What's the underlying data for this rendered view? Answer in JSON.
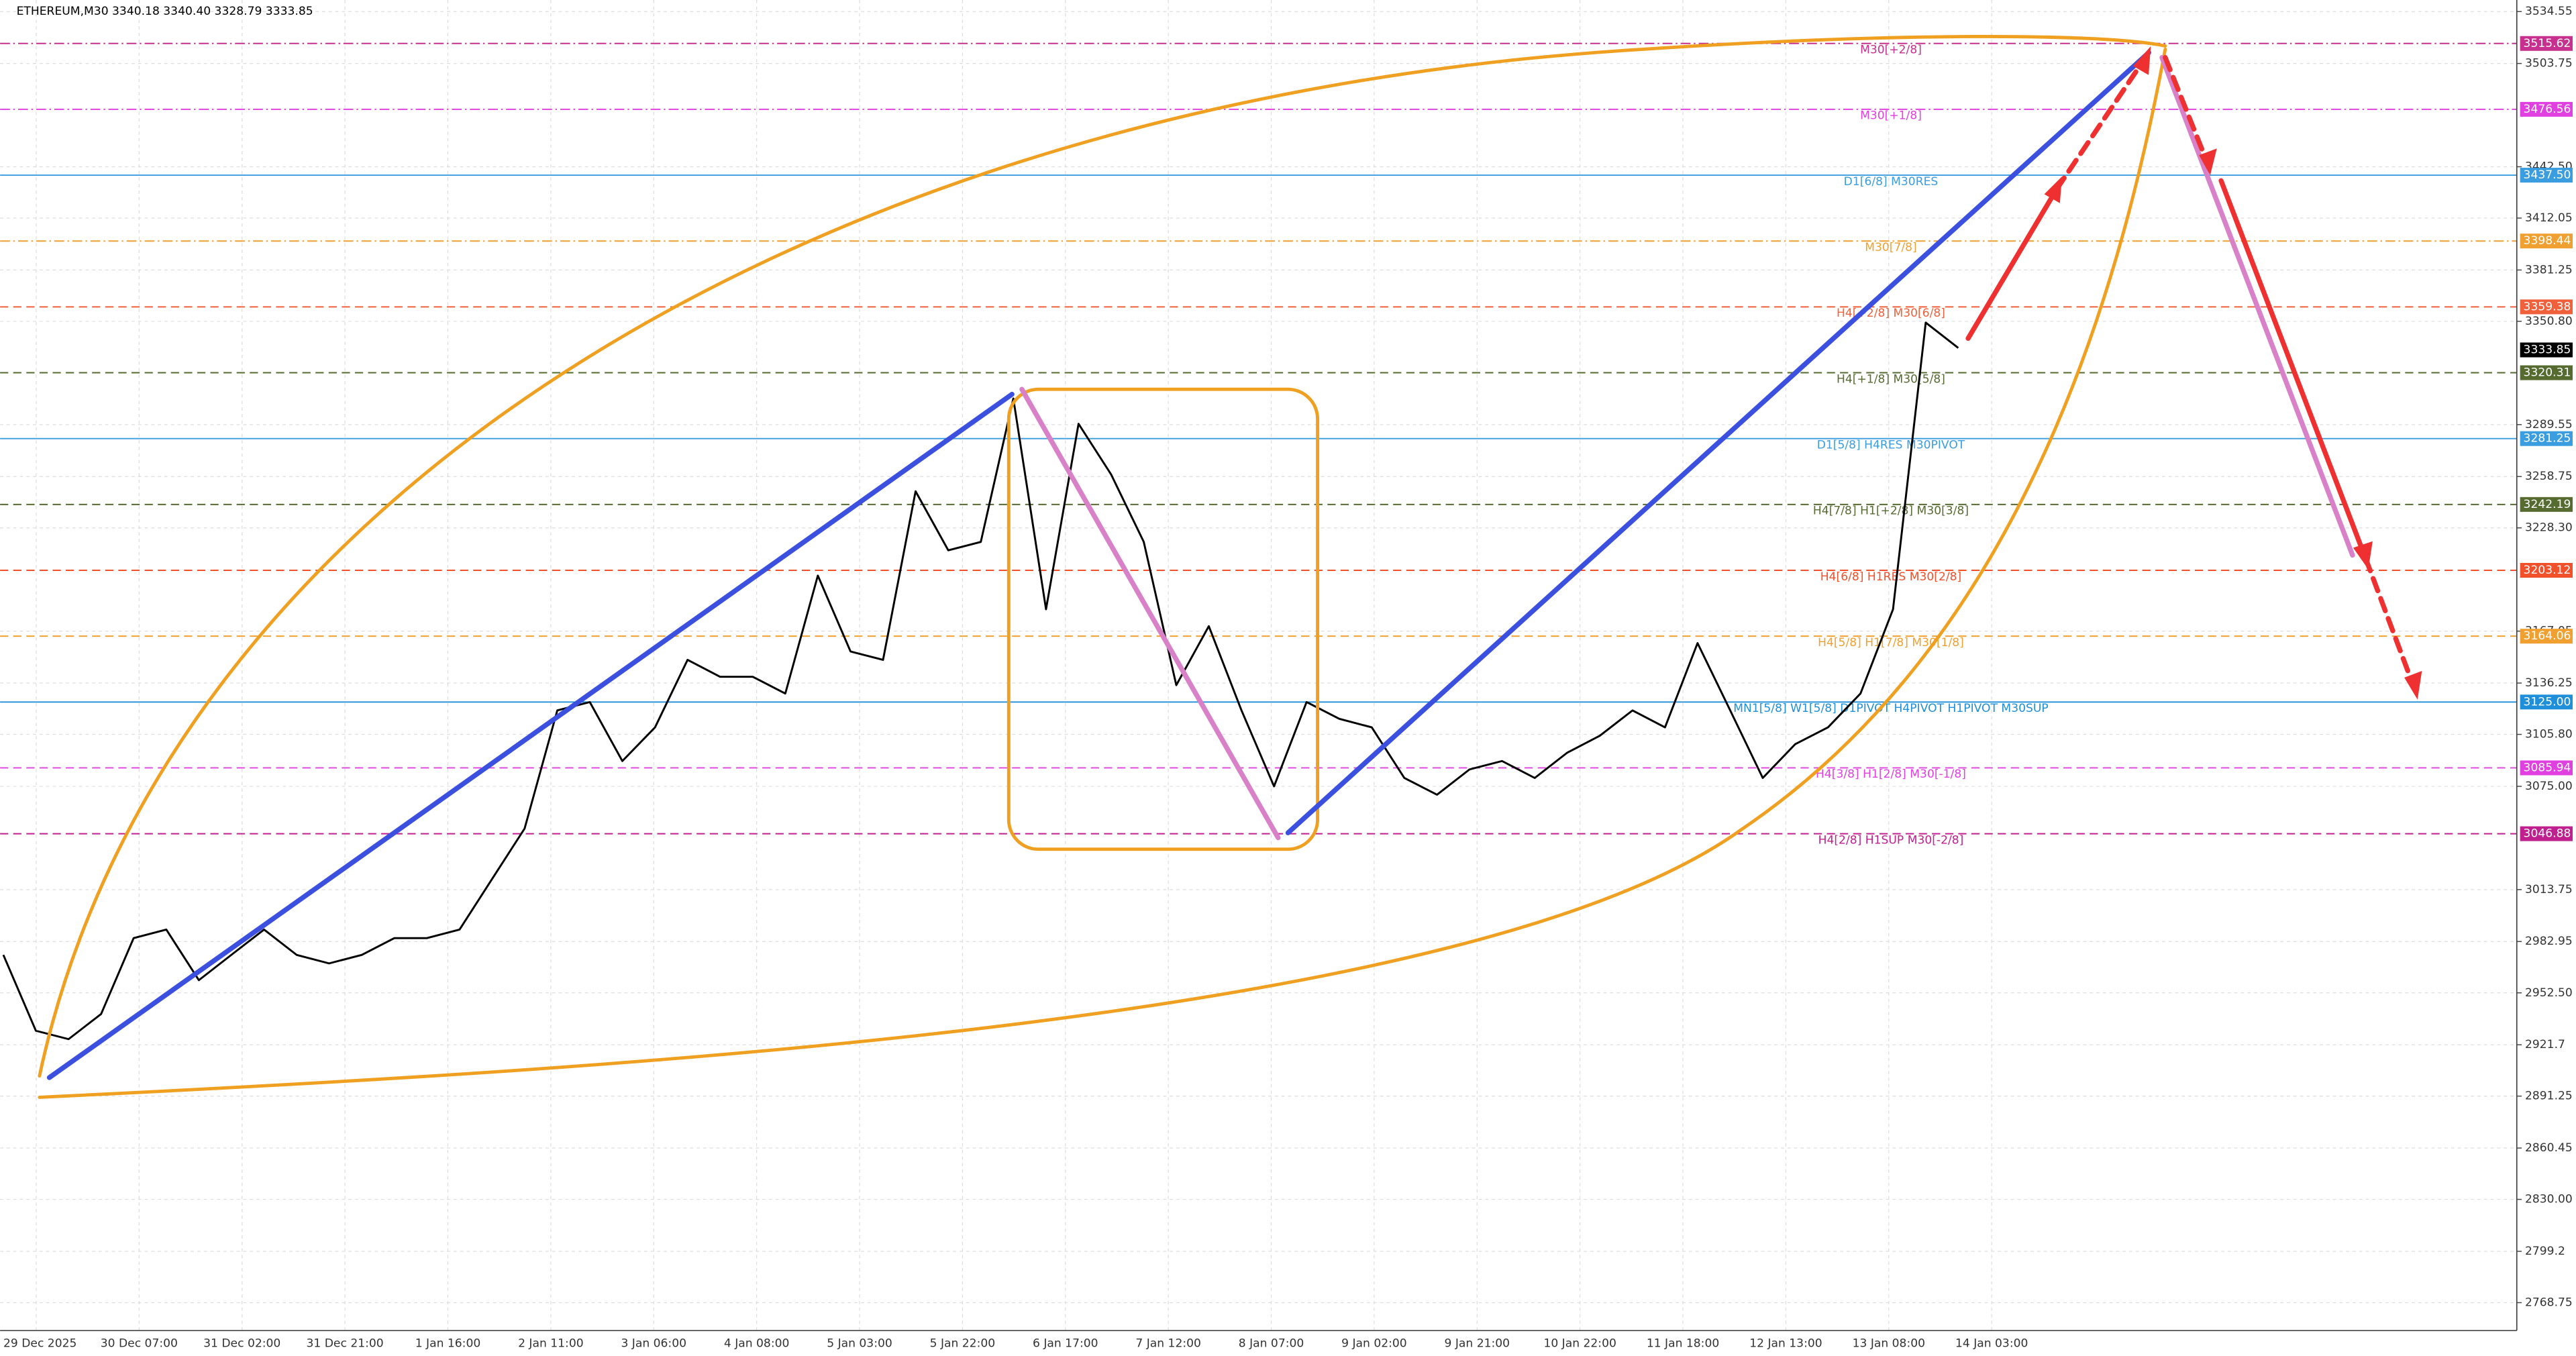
{
  "chart_data": {
    "type": "candlestick-line",
    "header": "ETHEREUM,M30  3340.18 3340.40 3328.79 3333.85",
    "ylim": [
      2752.2,
      3541.4
    ],
    "yticks": [
      3534.55,
      3503.75,
      {
        "value": 3442.5,
        "label": "3442.50"
      },
      3412.05,
      3381.25,
      {
        "value": 3350.8,
        "label": "3350.80"
      },
      3289.55,
      3258.75,
      {
        "value": 3228.3,
        "label": "3228.30"
      },
      3167.05,
      3136.25,
      {
        "value": 3105.8,
        "label": "3105.80"
      },
      {
        "value": 3075,
        "label": "3075.00"
      },
      3013.75,
      2982.95,
      {
        "value": 2952.5,
        "label": "2952.50"
      },
      2921.7,
      2891.25,
      2860.45,
      {
        "value": 2830,
        "label": "2830.00"
      },
      2799.2,
      2768.75
    ],
    "xlabels": [
      "29 Dec 2025",
      "30 Dec 07:00",
      "31 Dec 02:00",
      "31 Dec 21:00",
      "1 Jan 16:00",
      "2 Jan 11:00",
      "3 Jan 06:00",
      "4 Jan 08:00",
      "5 Jan 03:00",
      "5 Jan 22:00",
      "6 Jan 17:00",
      "7 Jan 12:00",
      "8 Jan 07:00",
      "9 Jan 02:00",
      "9 Jan 21:00",
      "10 Jan 22:00",
      "11 Jan 18:00",
      "12 Jan 13:00",
      "13 Jan 08:00",
      "14 Jan 03:00"
    ],
    "price": {
      "color": "#000000",
      "values": [
        2975,
        2930,
        2925,
        2940,
        2985,
        2990,
        2960,
        2975,
        2990,
        2975,
        2970,
        2975,
        2985,
        2985,
        2990,
        3020,
        3050,
        3120,
        3125,
        3090,
        3110,
        3150,
        3140,
        3140,
        3130,
        3200,
        3155,
        3150,
        3250,
        3215,
        3220,
        3305,
        3180,
        3290,
        3260,
        3220,
        3135,
        3170,
        3120,
        3075,
        3125,
        3115,
        3110,
        3080,
        3070,
        3085,
        3090,
        3080,
        3095,
        3105,
        3120,
        3110,
        3160,
        3120,
        3080,
        3100,
        3110,
        3130,
        3180,
        3350,
        3335
      ]
    },
    "current": {
      "value": 3333.85,
      "value_label": "3333.85",
      "color": "#000000"
    },
    "levels": [
      {
        "name": "M30[+2/8]",
        "value": 3515.62,
        "value_label": "3515.62",
        "color": "#c8308f",
        "dash": "6 2 1 2"
      },
      {
        "name": "M30[+1/8]",
        "value": 3476.56,
        "value_label": "3476.56",
        "color": "#e040e0",
        "dash": "6 2 1 2"
      },
      {
        "name": "D1[6/8] M30RES",
        "value": 3437.5,
        "value_label": "3437.50",
        "color": "#3a9de0",
        "dash": ""
      },
      {
        "name": "M30[7/8]",
        "value": 3398.44,
        "value_label": "3398.44",
        "color": "#f0a030",
        "dash": "6 2 1 2"
      },
      {
        "name": "H4[+2/8] M30[6/8]",
        "value": 3359.38,
        "value_label": "3359.38",
        "color": "#f0603a",
        "dash": "5 3"
      },
      {
        "name": "H4[+1/8] M30[5/8]",
        "value": 3320.31,
        "value_label": "3320.31",
        "color": "#556b2f",
        "dash": "5 3"
      },
      {
        "name": "D1[5/8] H4RES M30PIVOT",
        "value": 3281.25,
        "value_label": "3281.25",
        "color": "#3a9de0",
        "dash": ""
      },
      {
        "name": "H4[7/8] H1[+2/8] M30[3/8]",
        "value": 3242.19,
        "value_label": "3242.19",
        "color": "#556b2f",
        "dash": "5 3"
      },
      {
        "name": "H4[6/8] H1RES M30[2/8]",
        "value": 3203.12,
        "value_label": "3203.12",
        "color": "#f0502a",
        "dash": "5 3"
      },
      {
        "name": "H4[5/8] H1[7/8] M30[1/8]",
        "value": 3164.06,
        "value_label": "3164.06",
        "color": "#f0a030",
        "dash": "5 3"
      },
      {
        "name": "MN1[5/8] W1[5/8] D1PIVOT H4PIVOT H1PIVOT M30SUP",
        "value": 3125,
        "value_label": "3125.00",
        "color": "#1e8fd8",
        "dash": ""
      },
      {
        "name": "H4[3/8] H1[2/8] M30[-1/8]",
        "value": 3085.94,
        "value_label": "3085.94",
        "color": "#e040e0",
        "dash": "5 3"
      },
      {
        "name": "H4[2/8] H1SUP M30[-2/8]",
        "value": 3046.88,
        "value_label": "3046.88",
        "color": "#c0208f",
        "dash": "5 3"
      }
    ]
  }
}
